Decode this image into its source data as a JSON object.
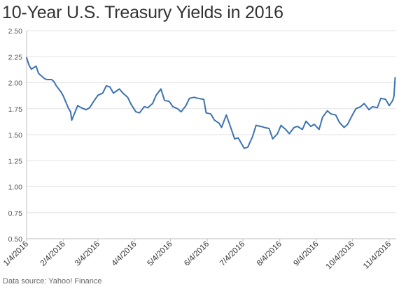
{
  "chart_data": {
    "type": "line",
    "title": "10-Year U.S. Treasury Yields in 2016",
    "source": "Data source: Yahoo! Finance",
    "xlabel": "",
    "ylabel": "",
    "ylim": [
      0.5,
      2.5
    ],
    "yticks": [
      "0.50",
      "0.75",
      "1.00",
      "1.25",
      "1.50",
      "1.75",
      "2.00",
      "2.25",
      "2.50"
    ],
    "xticks": [
      "1/4/2016",
      "2/4/2016",
      "3/4/2016",
      "4/4/2016",
      "5/4/2016",
      "6/4/2016",
      "7/4/2016",
      "8/4/2016",
      "9/4/2016",
      "10/4/2016",
      "11/4/2016"
    ],
    "grid": "horizontal",
    "line_color": "#3d72b0",
    "series": [
      {
        "x": [
          "1/4/2016",
          "1/6/2016",
          "1/8/2016",
          "1/12/2016",
          "1/14/2016",
          "1/19/2016",
          "1/21/2016",
          "1/25/2016",
          "1/27/2016",
          "1/29/2016",
          "2/2/2016",
          "2/4/2016",
          "2/8/2016",
          "2/10/2016",
          "2/11/2016",
          "2/16/2016",
          "2/19/2016",
          "2/23/2016",
          "2/26/2016",
          "3/1/2016",
          "3/4/2016",
          "3/8/2016",
          "3/11/2016",
          "3/14/2016",
          "3/17/2016",
          "3/22/2016",
          "3/25/2016",
          "3/29/2016",
          "4/1/2016",
          "4/5/2016",
          "4/8/2016",
          "4/12/2016",
          "4/15/2016",
          "4/19/2016",
          "4/22/2016",
          "4/26/2016",
          "4/29/2016",
          "5/3/2016",
          "5/6/2016",
          "5/10/2016",
          "5/13/2016",
          "5/17/2016",
          "5/20/2016",
          "5/24/2016",
          "5/27/2016",
          "6/1/2016",
          "6/3/2016",
          "6/7/2016",
          "6/10/2016",
          "6/14/2016",
          "6/16/2016",
          "6/20/2016",
          "6/24/2016",
          "6/27/2016",
          "6/30/2016",
          "7/5/2016",
          "7/8/2016",
          "7/12/2016",
          "7/15/2016",
          "7/19/2016",
          "7/22/2016",
          "7/26/2016",
          "7/29/2016",
          "8/2/2016",
          "8/5/2016",
          "8/9/2016",
          "8/12/2016",
          "8/16/2016",
          "8/19/2016",
          "8/23/2016",
          "8/26/2016",
          "8/30/2016",
          "9/2/2016",
          "9/6/2016",
          "9/9/2016",
          "9/13/2016",
          "9/16/2016",
          "9/20/2016",
          "9/23/2016",
          "9/27/2016",
          "9/30/2016",
          "10/4/2016",
          "10/7/2016",
          "10/11/2016",
          "10/14/2016",
          "10/18/2016",
          "10/21/2016",
          "10/25/2016",
          "10/28/2016",
          "11/1/2016",
          "11/4/2016",
          "11/7/2016",
          "11/8/2016",
          "11/9/2016"
        ],
        "values": [
          2.24,
          2.17,
          2.13,
          2.16,
          2.09,
          2.04,
          2.03,
          2.03,
          2.01,
          1.97,
          1.91,
          1.87,
          1.76,
          1.72,
          1.64,
          1.78,
          1.76,
          1.74,
          1.76,
          1.83,
          1.88,
          1.9,
          1.97,
          1.96,
          1.9,
          1.94,
          1.9,
          1.86,
          1.79,
          1.72,
          1.71,
          1.77,
          1.76,
          1.8,
          1.88,
          1.94,
          1.83,
          1.82,
          1.77,
          1.75,
          1.72,
          1.78,
          1.85,
          1.86,
          1.85,
          1.84,
          1.71,
          1.7,
          1.64,
          1.61,
          1.57,
          1.69,
          1.56,
          1.46,
          1.47,
          1.37,
          1.38,
          1.48,
          1.59,
          1.58,
          1.57,
          1.56,
          1.46,
          1.51,
          1.59,
          1.55,
          1.51,
          1.57,
          1.58,
          1.55,
          1.63,
          1.58,
          1.6,
          1.55,
          1.67,
          1.73,
          1.7,
          1.69,
          1.62,
          1.57,
          1.6,
          1.69,
          1.75,
          1.77,
          1.8,
          1.74,
          1.77,
          1.76,
          1.85,
          1.84,
          1.78,
          1.83,
          1.87,
          2.05
        ]
      }
    ]
  }
}
